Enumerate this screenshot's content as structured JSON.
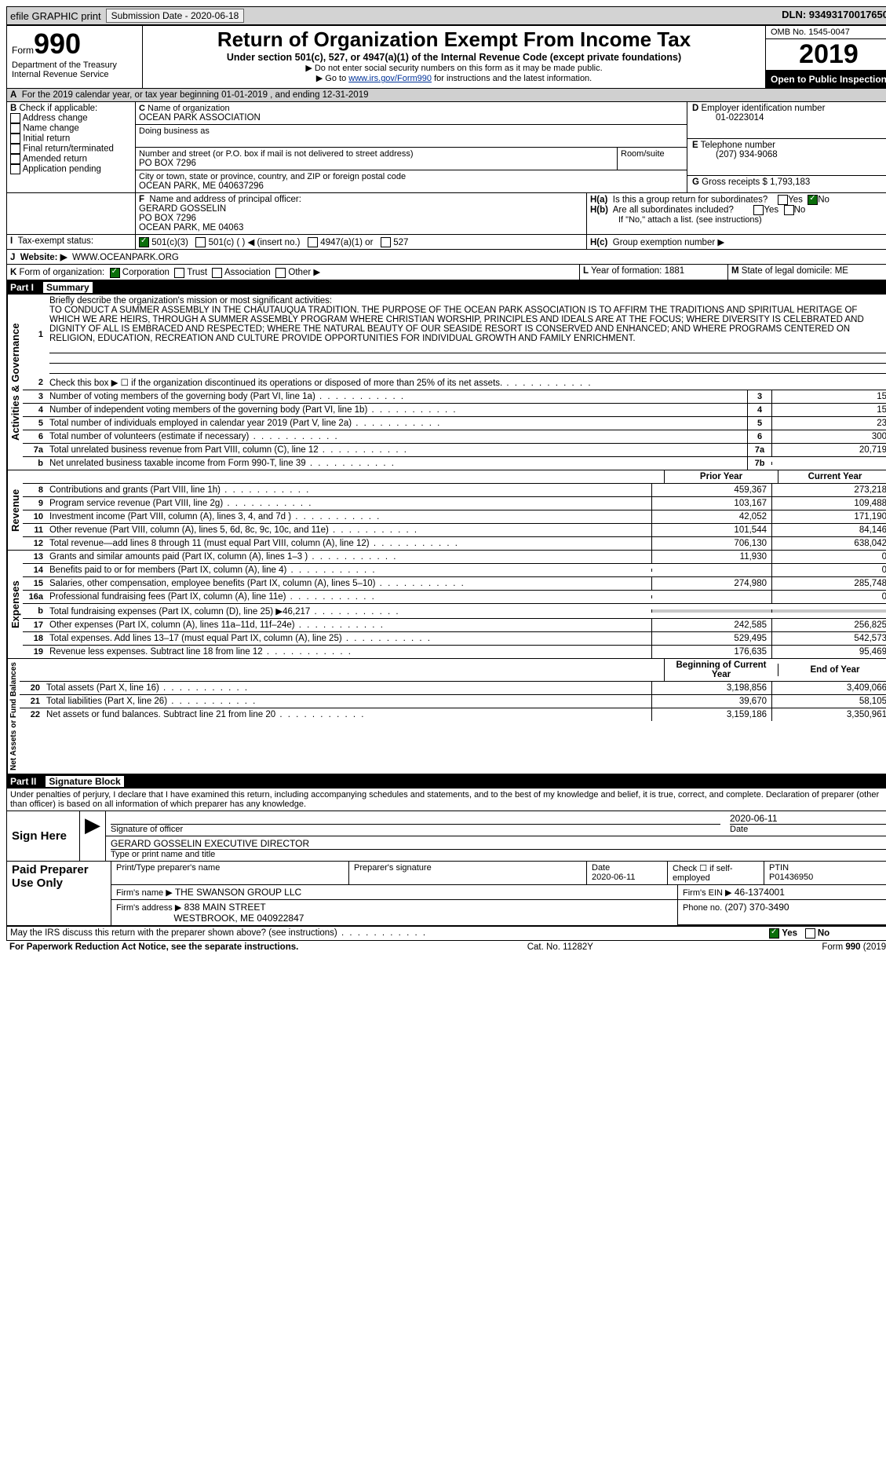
{
  "topbar": {
    "efile": "efile GRAPHIC print",
    "submission_label": "Submission Date - 2020-06-18",
    "dln_label": "DLN: 93493170017650"
  },
  "header": {
    "form_word": "Form",
    "form_number": "990",
    "dept1": "Department of the Treasury",
    "dept2": "Internal Revenue Service",
    "title": "Return of Organization Exempt From Income Tax",
    "subtitle1": "Under section 501(c), 527, or 4947(a)(1) of the Internal Revenue Code (except private foundations)",
    "subtitle2": "▶ Do not enter social security numbers on this form as it may be made public.",
    "subtitle3_pre": "▶ Go to ",
    "subtitle3_link": "www.irs.gov/Form990",
    "subtitle3_post": " for instructions and the latest information.",
    "omb": "OMB No. 1545-0047",
    "year": "2019",
    "open": "Open to Public Inspection"
  },
  "rowA": {
    "label": "A",
    "text": "For the 2019 calendar year, or tax year beginning 01-01-2019   , and ending 12-31-2019"
  },
  "boxB": {
    "label": "B",
    "check_label": "Check if applicable:",
    "opts": [
      "Address change",
      "Name change",
      "Initial return",
      "Final return/terminated",
      "Amended return",
      "Application pending"
    ]
  },
  "boxC": {
    "label": "C",
    "name_label": "Name of organization",
    "name": "OCEAN PARK ASSOCIATION",
    "dba_label": "Doing business as",
    "street_label": "Number and street (or P.O. box if mail is not delivered to street address)",
    "street": "PO BOX 7296",
    "room_label": "Room/suite",
    "city_label": "City or town, state or province, country, and ZIP or foreign postal code",
    "city": "OCEAN PARK, ME  040637296"
  },
  "boxD": {
    "label": "D",
    "text": "Employer identification number",
    "value": "01-0223014"
  },
  "boxE": {
    "label": "E",
    "text": "Telephone number",
    "value": "(207) 934-9068"
  },
  "boxG": {
    "label": "G",
    "text": "Gross receipts $",
    "value": "1,793,183"
  },
  "boxF": {
    "label": "F",
    "text": "Name and address of principal officer:",
    "name": "GERARD GOSSELIN",
    "addr1": "PO BOX 7296",
    "addr2": "OCEAN PARK, ME  04063"
  },
  "boxH": {
    "ha_label": "H(a)",
    "ha_text": "Is this a group return for subordinates?",
    "yes": "Yes",
    "no": "No",
    "hb_label": "H(b)",
    "hb_text": "Are all subordinates included?",
    "hb_note": "If \"No,\" attach a list. (see instructions)",
    "hc_label": "H(c)",
    "hc_text": "Group exemption number ▶"
  },
  "rowI": {
    "label": "I",
    "text": "Tax-exempt status:",
    "opt1": "501(c)(3)",
    "opt2": "501(c) (   ) ◀ (insert no.)",
    "opt3": "4947(a)(1) or",
    "opt4": "527"
  },
  "rowJ": {
    "label": "J",
    "text": "Website: ▶",
    "value": "WWW.OCEANPARK.ORG"
  },
  "rowK": {
    "label": "K",
    "text": "Form of organization:",
    "opts": [
      "Corporation",
      "Trust",
      "Association",
      "Other ▶"
    ]
  },
  "rowL": {
    "label": "L",
    "text": "Year of formation:",
    "value": "1881"
  },
  "rowM": {
    "label": "M",
    "text": "State of legal domicile:",
    "value": "ME"
  },
  "part1": {
    "label": "Part I",
    "title": "Summary"
  },
  "vert": {
    "ag": "Activities & Governance",
    "rev": "Revenue",
    "exp": "Expenses",
    "net": "Net Assets or Fund Balances"
  },
  "mission": {
    "num": "1",
    "label": "Briefly describe the organization's mission or most significant activities:",
    "text": "TO CONDUCT A SUMMER ASSEMBLY IN THE CHAUTAUQUA TRADITION. THE PURPOSE OF THE OCEAN PARK ASSOCIATION IS TO AFFIRM THE TRADITIONS AND SPIRITUAL HERITAGE OF WHICH WE ARE HEIRS, THROUGH A SUMMER ASSEMBLY PROGRAM WHERE CHRISTIAN WORSHIP, PRINCIPLES AND IDEALS ARE AT THE FOCUS; WHERE DIVERSITY IS CELEBRATED AND DIGNITY OF ALL IS EMBRACED AND RESPECTED; WHERE THE NATURAL BEAUTY OF OUR SEASIDE RESORT IS CONSERVED AND ENHANCED; AND WHERE PROGRAMS CENTERED ON RELIGION, EDUCATION, RECREATION AND CULTURE PROVIDE OPPORTUNITIES FOR INDIVIDUAL GROWTH AND FAMILY ENRICHMENT."
  },
  "gov_lines": [
    {
      "n": "2",
      "t": "Check this box ▶ ☐ if the organization discontinued its operations or disposed of more than 25% of its net assets.",
      "box": "",
      "val": ""
    },
    {
      "n": "3",
      "t": "Number of voting members of the governing body (Part VI, line 1a)",
      "box": "3",
      "val": "15"
    },
    {
      "n": "4",
      "t": "Number of independent voting members of the governing body (Part VI, line 1b)",
      "box": "4",
      "val": "15"
    },
    {
      "n": "5",
      "t": "Total number of individuals employed in calendar year 2019 (Part V, line 2a)",
      "box": "5",
      "val": "23"
    },
    {
      "n": "6",
      "t": "Total number of volunteers (estimate if necessary)",
      "box": "6",
      "val": "300"
    },
    {
      "n": "7a",
      "t": "Total unrelated business revenue from Part VIII, column (C), line 12",
      "box": "7a",
      "val": "20,719"
    },
    {
      "n": "b",
      "t": "Net unrelated business taxable income from Form 990-T, line 39",
      "box": "7b",
      "val": ""
    }
  ],
  "col_headers": {
    "prior": "Prior Year",
    "current": "Current Year",
    "begin": "Beginning of Current Year",
    "end": "End of Year"
  },
  "rev_lines": [
    {
      "n": "8",
      "t": "Contributions and grants (Part VIII, line 1h)",
      "p": "459,367",
      "c": "273,218"
    },
    {
      "n": "9",
      "t": "Program service revenue (Part VIII, line 2g)",
      "p": "103,167",
      "c": "109,488"
    },
    {
      "n": "10",
      "t": "Investment income (Part VIII, column (A), lines 3, 4, and 7d )",
      "p": "42,052",
      "c": "171,190"
    },
    {
      "n": "11",
      "t": "Other revenue (Part VIII, column (A), lines 5, 6d, 8c, 9c, 10c, and 11e)",
      "p": "101,544",
      "c": "84,146"
    },
    {
      "n": "12",
      "t": "Total revenue—add lines 8 through 11 (must equal Part VIII, column (A), line 12)",
      "p": "706,130",
      "c": "638,042"
    }
  ],
  "exp_lines": [
    {
      "n": "13",
      "t": "Grants and similar amounts paid (Part IX, column (A), lines 1–3 )",
      "p": "11,930",
      "c": "0"
    },
    {
      "n": "14",
      "t": "Benefits paid to or for members (Part IX, column (A), line 4)",
      "p": "",
      "c": "0"
    },
    {
      "n": "15",
      "t": "Salaries, other compensation, employee benefits (Part IX, column (A), lines 5–10)",
      "p": "274,980",
      "c": "285,748"
    },
    {
      "n": "16a",
      "t": "Professional fundraising fees (Part IX, column (A), line 11e)",
      "p": "",
      "c": "0"
    },
    {
      "n": "b",
      "t": "Total fundraising expenses (Part IX, column (D), line 25) ▶46,217",
      "p": "SHADED",
      "c": "SHADED"
    },
    {
      "n": "17",
      "t": "Other expenses (Part IX, column (A), lines 11a–11d, 11f–24e)",
      "p": "242,585",
      "c": "256,825"
    },
    {
      "n": "18",
      "t": "Total expenses. Add lines 13–17 (must equal Part IX, column (A), line 25)",
      "p": "529,495",
      "c": "542,573"
    },
    {
      "n": "19",
      "t": "Revenue less expenses. Subtract line 18 from line 12",
      "p": "176,635",
      "c": "95,469"
    }
  ],
  "net_lines": [
    {
      "n": "20",
      "t": "Total assets (Part X, line 16)",
      "p": "3,198,856",
      "c": "3,409,066"
    },
    {
      "n": "21",
      "t": "Total liabilities (Part X, line 26)",
      "p": "39,670",
      "c": "58,105"
    },
    {
      "n": "22",
      "t": "Net assets or fund balances. Subtract line 21 from line 20",
      "p": "3,159,186",
      "c": "3,350,961"
    }
  ],
  "part2": {
    "label": "Part II",
    "title": "Signature Block"
  },
  "perjury": "Under penalties of perjury, I declare that I have examined this return, including accompanying schedules and statements, and to the best of my knowledge and belief, it is true, correct, and complete. Declaration of preparer (other than officer) is based on all information of which preparer has any knowledge.",
  "sign": {
    "label": "Sign Here",
    "sig_date": "2020-06-11",
    "sig_of_officer": "Signature of officer",
    "date_label": "Date",
    "name": "GERARD GOSSELIN EXECUTIVE DIRECTOR",
    "name_label": "Type or print name and title"
  },
  "paid": {
    "label": "Paid Preparer Use Only",
    "col1": "Print/Type preparer's name",
    "col2": "Preparer's signature",
    "col3": "Date",
    "date": "2020-06-11",
    "check_label": "Check ☐ if self-employed",
    "ptin_label": "PTIN",
    "ptin": "P01436950",
    "firm_name_label": "Firm's name    ▶",
    "firm_name": "THE SWANSON GROUP LLC",
    "firm_ein_label": "Firm's EIN ▶",
    "firm_ein": "46-1374001",
    "firm_addr_label": "Firm's address ▶",
    "firm_addr1": "838 MAIN STREET",
    "firm_addr2": "WESTBROOK, ME  040922847",
    "phone_label": "Phone no.",
    "phone": "(207) 370-3490"
  },
  "discuss": {
    "text": "May the IRS discuss this return with the preparer shown above? (see instructions)",
    "yes": "Yes",
    "no": "No"
  },
  "footer": {
    "left": "For Paperwork Reduction Act Notice, see the separate instructions.",
    "mid": "Cat. No. 11282Y",
    "right_pre": "Form ",
    "right_form": "990",
    "right_post": " (2019)"
  }
}
